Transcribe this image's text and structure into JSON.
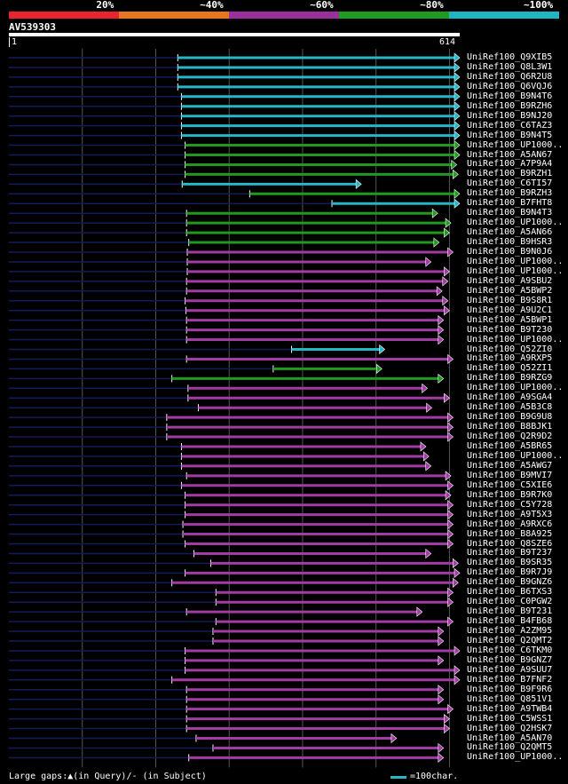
{
  "legend": {
    "segments": [
      {
        "label": "20%",
        "color": "#e8242f"
      },
      {
        "label": "~40%",
        "color": "#e8761f"
      },
      {
        "label": "~60%",
        "color": "#9b2f9e"
      },
      {
        "label": "~80%",
        "color": "#1f9b1f"
      },
      {
        "label": "~100%",
        "color": "#1fb6c4"
      }
    ]
  },
  "query": {
    "id": "AV539303",
    "start": "1",
    "end": "614",
    "length": 614
  },
  "colors": {
    "cyan": "#25b6c7",
    "green": "#1f9a1f",
    "purple": "#a23ba4",
    "faint": "#141b5a",
    "grid": "#555555"
  },
  "hits": [
    {
      "name": "UniRef100_Q9XIB5",
      "start": 230,
      "end": 614,
      "color": "cyan"
    },
    {
      "name": "UniRef100_Q8L3W1",
      "start": 230,
      "end": 614,
      "color": "cyan"
    },
    {
      "name": "UniRef100_Q6R2U8",
      "start": 230,
      "end": 614,
      "color": "cyan"
    },
    {
      "name": "UniRef100_Q6VQJ6",
      "start": 230,
      "end": 614,
      "color": "cyan"
    },
    {
      "name": "UniRef100_B9N4T6",
      "start": 235,
      "end": 614,
      "color": "cyan"
    },
    {
      "name": "UniRef100_B9RZH6",
      "start": 235,
      "end": 614,
      "color": "cyan"
    },
    {
      "name": "UniRef100_B9NJ20",
      "start": 235,
      "end": 614,
      "color": "cyan"
    },
    {
      "name": "UniRef100_C6TAZ3",
      "start": 235,
      "end": 614,
      "color": "cyan"
    },
    {
      "name": "UniRef100_B9N4T5",
      "start": 235,
      "end": 614,
      "color": "cyan"
    },
    {
      "name": "UniRef100_UP1000..",
      "start": 240,
      "end": 614,
      "color": "green"
    },
    {
      "name": "UniRef100_A5AN67",
      "start": 240,
      "end": 614,
      "color": "green"
    },
    {
      "name": "UniRef100_A7P9A4",
      "start": 240,
      "end": 610,
      "color": "green"
    },
    {
      "name": "UniRef100_B9RZH1",
      "start": 240,
      "end": 612,
      "color": "green"
    },
    {
      "name": "UniRef100_C6TI57",
      "start": 236,
      "end": 480,
      "color": "cyan"
    },
    {
      "name": "UniRef100_B9RZH3",
      "start": 328,
      "end": 614,
      "color": "green"
    },
    {
      "name": "UniRef100_B7FHT8",
      "start": 440,
      "end": 614,
      "color": "cyan"
    },
    {
      "name": "UniRef100_B9N4T3",
      "start": 242,
      "end": 584,
      "color": "green"
    },
    {
      "name": "UniRef100_UP1000..",
      "start": 242,
      "end": 602,
      "color": "green"
    },
    {
      "name": "UniRef100_A5AN66",
      "start": 242,
      "end": 600,
      "color": "green"
    },
    {
      "name": "UniRef100_B9HSR3",
      "start": 245,
      "end": 586,
      "color": "green"
    },
    {
      "name": "UniRef100_B9N0J6",
      "start": 243,
      "end": 605,
      "color": "purple"
    },
    {
      "name": "UniRef100_UP1000..",
      "start": 243,
      "end": 575,
      "color": "purple"
    },
    {
      "name": "UniRef100_UP1000..",
      "start": 243,
      "end": 600,
      "color": "purple"
    },
    {
      "name": "UniRef100_A9SBU2",
      "start": 242,
      "end": 598,
      "color": "purple"
    },
    {
      "name": "UniRef100_A5BWP2",
      "start": 242,
      "end": 590,
      "color": "purple"
    },
    {
      "name": "UniRef100_B9S8R1",
      "start": 240,
      "end": 598,
      "color": "purple"
    },
    {
      "name": "UniRef100_A9U2C1",
      "start": 241,
      "end": 600,
      "color": "purple"
    },
    {
      "name": "UniRef100_A5BWP1",
      "start": 242,
      "end": 592,
      "color": "purple"
    },
    {
      "name": "UniRef100_B9T230",
      "start": 242,
      "end": 592,
      "color": "purple"
    },
    {
      "name": "UniRef100_UP1000..",
      "start": 242,
      "end": 592,
      "color": "purple"
    },
    {
      "name": "UniRef100_Q52ZI0",
      "start": 385,
      "end": 512,
      "color": "cyan"
    },
    {
      "name": "UniRef100_A9RXP5",
      "start": 242,
      "end": 605,
      "color": "purple"
    },
    {
      "name": "UniRef100_Q52ZI1",
      "start": 360,
      "end": 508,
      "color": "green"
    },
    {
      "name": "UniRef100_B9RZG9",
      "start": 222,
      "end": 592,
      "color": "green"
    },
    {
      "name": "UniRef100_UP1000..",
      "start": 244,
      "end": 570,
      "color": "purple"
    },
    {
      "name": "UniRef100_A9SGA4",
      "start": 244,
      "end": 600,
      "color": "purple"
    },
    {
      "name": "UniRef100_A5B3C8",
      "start": 258,
      "end": 576,
      "color": "purple"
    },
    {
      "name": "UniRef100_B9G9U8",
      "start": 215,
      "end": 605,
      "color": "purple"
    },
    {
      "name": "UniRef100_B8BJK1",
      "start": 215,
      "end": 605,
      "color": "purple"
    },
    {
      "name": "UniRef100_Q2R9D2",
      "start": 215,
      "end": 605,
      "color": "purple"
    },
    {
      "name": "UniRef100_A5BR65",
      "start": 235,
      "end": 568,
      "color": "purple"
    },
    {
      "name": "UniRef100_UP1000..",
      "start": 235,
      "end": 572,
      "color": "purple"
    },
    {
      "name": "UniRef100_A5AWG7",
      "start": 235,
      "end": 575,
      "color": "purple"
    },
    {
      "name": "UniRef100_B9MVI7",
      "start": 242,
      "end": 602,
      "color": "purple"
    },
    {
      "name": "UniRef100_C5XIE6",
      "start": 235,
      "end": 605,
      "color": "purple"
    },
    {
      "name": "UniRef100_B9R7K0",
      "start": 240,
      "end": 602,
      "color": "purple"
    },
    {
      "name": "UniRef100_C5Y728",
      "start": 240,
      "end": 605,
      "color": "purple"
    },
    {
      "name": "UniRef100_A9T5X3",
      "start": 240,
      "end": 605,
      "color": "purple"
    },
    {
      "name": "UniRef100_A9RXC6",
      "start": 237,
      "end": 605,
      "color": "purple"
    },
    {
      "name": "UniRef100_B8A925",
      "start": 237,
      "end": 605,
      "color": "purple"
    },
    {
      "name": "UniRef100_Q8SZE6",
      "start": 240,
      "end": 605,
      "color": "purple"
    },
    {
      "name": "UniRef100_B9T237",
      "start": 252,
      "end": 575,
      "color": "purple"
    },
    {
      "name": "UniRef100_B9SR35",
      "start": 275,
      "end": 612,
      "color": "purple"
    },
    {
      "name": "UniRef100_B9R7J9",
      "start": 240,
      "end": 614,
      "color": "purple"
    },
    {
      "name": "UniRef100_B9GNZ6",
      "start": 222,
      "end": 612,
      "color": "purple"
    },
    {
      "name": "UniRef100_B6TXS3",
      "start": 282,
      "end": 605,
      "color": "purple"
    },
    {
      "name": "UniRef100_C0PGW2",
      "start": 282,
      "end": 605,
      "color": "purple"
    },
    {
      "name": "UniRef100_B9T231",
      "start": 242,
      "end": 563,
      "color": "purple"
    },
    {
      "name": "UniRef100_B4FB68",
      "start": 282,
      "end": 605,
      "color": "purple"
    },
    {
      "name": "UniRef100_A2ZM95",
      "start": 278,
      "end": 592,
      "color": "purple"
    },
    {
      "name": "UniRef100_Q2QMT2",
      "start": 278,
      "end": 592,
      "color": "purple"
    },
    {
      "name": "UniRef100_C6TKM0",
      "start": 240,
      "end": 614,
      "color": "purple"
    },
    {
      "name": "UniRef100_B9GNZ7",
      "start": 240,
      "end": 592,
      "color": "purple"
    },
    {
      "name": "UniRef100_A9SUU7",
      "start": 240,
      "end": 614,
      "color": "purple"
    },
    {
      "name": "UniRef100_B7FNF2",
      "start": 222,
      "end": 614,
      "color": "purple"
    },
    {
      "name": "UniRef100_B9F9R6",
      "start": 242,
      "end": 592,
      "color": "purple"
    },
    {
      "name": "UniRef100_Q851V1",
      "start": 242,
      "end": 592,
      "color": "purple"
    },
    {
      "name": "UniRef100_A9TWB4",
      "start": 242,
      "end": 605,
      "color": "purple"
    },
    {
      "name": "UniRef100_C5WSS1",
      "start": 242,
      "end": 600,
      "color": "purple"
    },
    {
      "name": "UniRef100_Q2HSK7",
      "start": 242,
      "end": 600,
      "color": "purple"
    },
    {
      "name": "UniRef100_A5AN70",
      "start": 255,
      "end": 528,
      "color": "purple"
    },
    {
      "name": "UniRef100_Q2QMT5",
      "start": 278,
      "end": 592,
      "color": "purple"
    },
    {
      "name": "UniRef100_UP1000..",
      "start": 245,
      "end": 592,
      "color": "purple"
    }
  ],
  "footer": {
    "gaps_text": "Large gaps:▲(in Query)/- (in Subject)",
    "scale_text": "=100char."
  }
}
